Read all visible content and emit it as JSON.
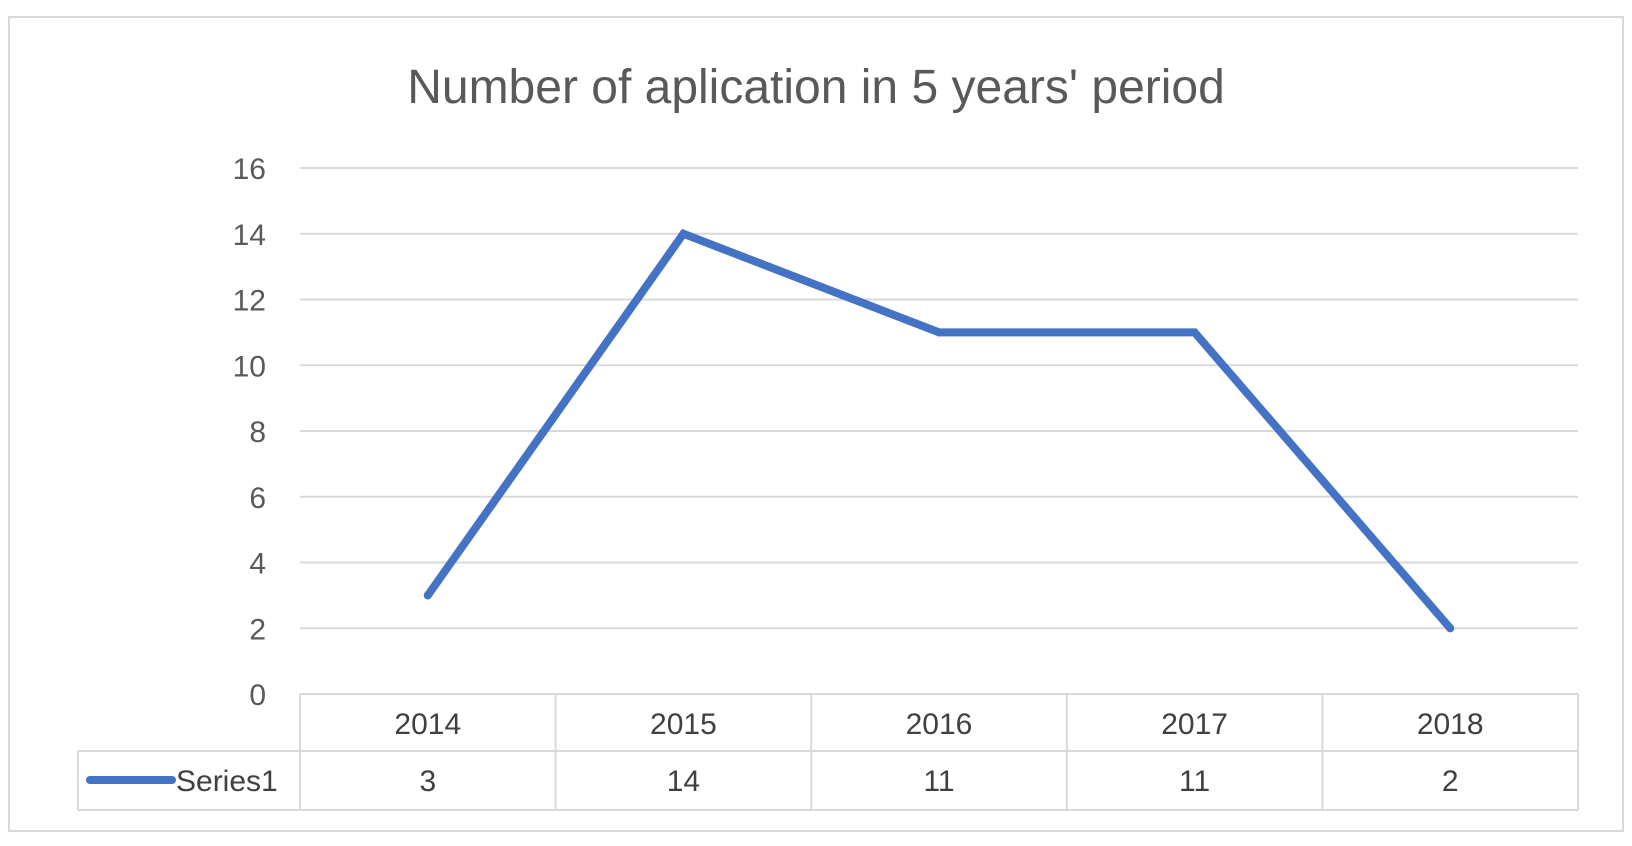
{
  "chart_data": {
    "type": "line",
    "title": "Number of aplication in 5 years' period",
    "categories": [
      "2014",
      "2015",
      "2016",
      "2017",
      "2018"
    ],
    "series": [
      {
        "name": "Series1",
        "values": [
          3,
          14,
          11,
          11,
          2
        ],
        "color": "#4472c4"
      }
    ],
    "ylim": [
      0,
      16
    ],
    "y_ticks": [
      0,
      2,
      4,
      6,
      8,
      10,
      12,
      14,
      16
    ],
    "grid": true,
    "legend": "data-table",
    "data_table": true
  }
}
